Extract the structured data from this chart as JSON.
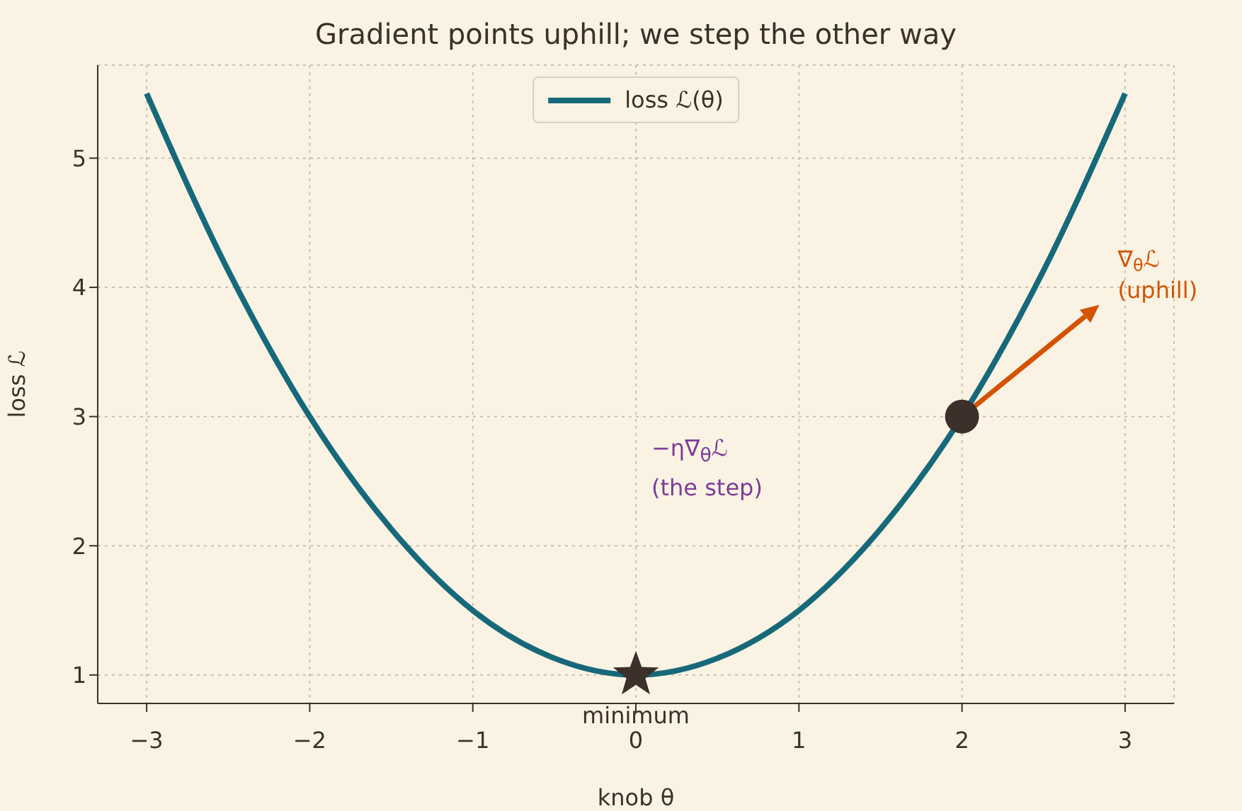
{
  "chart_data": {
    "type": "line",
    "title": "Gradient points uphill; we step the other way",
    "xlabel": "knob  θ",
    "ylabel": "loss  ℒ",
    "xlim": [
      -3.3,
      3.3
    ],
    "xticks": [
      -3,
      -2,
      -1,
      0,
      1,
      2,
      3
    ],
    "ylim": [
      0.78,
      5.72
    ],
    "yticks": [
      1,
      2,
      3,
      4,
      5
    ],
    "grid": true,
    "legend": "top",
    "line_style": "solid",
    "series": [
      {
        "name": "loss ℒ(θ)",
        "color": "#17697a",
        "x": [
          -3,
          -2.5,
          -2,
          -1.5,
          -1,
          -0.5,
          0,
          0.5,
          1,
          1.5,
          2,
          2.5,
          3
        ],
        "values": [
          5.5,
          4.13,
          3,
          2.13,
          1.5,
          1.13,
          1,
          1.13,
          1.5,
          2.13,
          3,
          4.13,
          5.5
        ]
      },
      {
        "type": "scatter",
        "marker": "star",
        "color": "#3b302a",
        "x": [
          0
        ],
        "values": [
          1
        ]
      },
      {
        "type": "scatter",
        "marker": "circle",
        "color": "#3b302a",
        "x": [
          2
        ],
        "values": [
          3
        ]
      }
    ],
    "annotations": [
      {
        "text": "minimum",
        "x": 0,
        "y": 1
      },
      "∇$_{θ}$ℒ\n(uphill)",
      "−η∇$_{θ}$ℒ\n(the step)"
    ]
  }
}
